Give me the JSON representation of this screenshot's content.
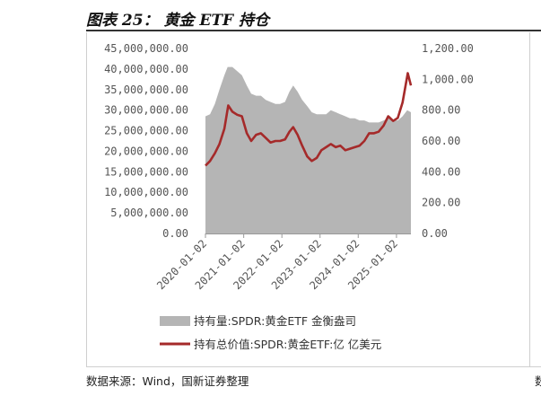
{
  "figure": {
    "title": "图表 25： 黄金 ETF 持仓",
    "source": "数据来源：Wind，国新证券整理",
    "cut_off_char": "数"
  },
  "chart_data": {
    "type": "area+line",
    "x_tick_labels": [
      "2020-01-02",
      "2021-01-02",
      "2022-01-02",
      "2023-01-02",
      "2024-01-02",
      "2025-01-02"
    ],
    "left_axis": {
      "ylim": [
        0,
        45000000
      ],
      "tick_labels": [
        "0.00",
        "5,000,000.00",
        "10,000,000.00",
        "15,000,000.00",
        "20,000,000.00",
        "25,000,000.00",
        "30,000,000.00",
        "35,000,000.00",
        "40,000,000.00",
        "45,000,000.00"
      ]
    },
    "right_axis": {
      "ylim": [
        0,
        1200
      ],
      "tick_labels": [
        "0.00",
        "200.00",
        "400.00",
        "600.00",
        "800.00",
        "1,000.00",
        "1,200.00"
      ]
    },
    "colors": {
      "area": "#b5b5b5",
      "line": "#a52a2a"
    },
    "legend_position": "bottom",
    "series": [
      {
        "name": "持有量:SPDR:黄金ETF 金衡盎司",
        "type": "area",
        "axis": "left",
        "x": [
          "2020-01-02",
          "2020-02-15",
          "2020-04-01",
          "2020-05-15",
          "2020-07-01",
          "2020-08-01",
          "2020-09-15",
          "2020-11-01",
          "2020-12-15",
          "2021-02-01",
          "2021-03-15",
          "2021-05-01",
          "2021-06-15",
          "2021-08-01",
          "2021-09-15",
          "2021-11-01",
          "2021-12-15",
          "2022-02-01",
          "2022-03-15",
          "2022-04-20",
          "2022-06-01",
          "2022-07-15",
          "2022-09-01",
          "2022-10-15",
          "2022-12-01",
          "2023-01-15",
          "2023-03-01",
          "2023-04-15",
          "2023-06-01",
          "2023-07-15",
          "2023-09-01",
          "2023-10-15",
          "2023-12-01",
          "2024-01-15",
          "2024-03-01",
          "2024-04-15",
          "2024-06-01",
          "2024-07-15",
          "2024-09-01",
          "2024-10-15",
          "2024-12-01",
          "2025-01-15",
          "2025-03-01",
          "2025-04-15",
          "2025-05-20"
        ],
        "values": [
          28500000,
          29000000,
          31500000,
          35000000,
          38500000,
          40500000,
          40500000,
          39500000,
          38500000,
          36000000,
          34000000,
          33500000,
          33500000,
          32500000,
          32000000,
          31500000,
          31500000,
          32000000,
          34500000,
          36000000,
          34500000,
          32500000,
          31000000,
          29500000,
          29000000,
          29000000,
          29000000,
          30000000,
          29500000,
          29000000,
          28500000,
          28000000,
          28000000,
          27500000,
          27500000,
          27000000,
          27000000,
          27000000,
          27500000,
          28000000,
          27500000,
          27500000,
          28500000,
          30000000,
          29500000
        ]
      },
      {
        "name": "持有总价值:SPDR:黄金ETF:亿 亿美元",
        "type": "line",
        "axis": "right",
        "x": [
          "2020-01-02",
          "2020-02-15",
          "2020-04-01",
          "2020-05-15",
          "2020-07-01",
          "2020-08-07",
          "2020-09-15",
          "2020-11-01",
          "2020-12-15",
          "2021-02-01",
          "2021-03-15",
          "2021-05-01",
          "2021-06-15",
          "2021-08-01",
          "2021-09-15",
          "2021-11-01",
          "2021-12-15",
          "2022-02-01",
          "2022-03-15",
          "2022-04-20",
          "2022-06-01",
          "2022-07-15",
          "2022-09-01",
          "2022-10-15",
          "2022-12-01",
          "2023-01-15",
          "2023-03-01",
          "2023-04-15",
          "2023-06-01",
          "2023-07-15",
          "2023-09-01",
          "2023-10-15",
          "2023-12-01",
          "2024-01-15",
          "2024-03-01",
          "2024-04-15",
          "2024-06-01",
          "2024-07-15",
          "2024-09-01",
          "2024-10-15",
          "2024-12-01",
          "2025-01-15",
          "2025-03-01",
          "2025-04-20",
          "2025-05-20"
        ],
        "values": [
          440,
          470,
          520,
          580,
          680,
          830,
          790,
          770,
          760,
          650,
          600,
          640,
          650,
          620,
          590,
          600,
          600,
          610,
          660,
          690,
          640,
          570,
          500,
          470,
          490,
          540,
          560,
          580,
          560,
          570,
          540,
          550,
          560,
          570,
          600,
          650,
          650,
          660,
          700,
          760,
          730,
          750,
          850,
          1040,
          960
        ]
      }
    ]
  }
}
